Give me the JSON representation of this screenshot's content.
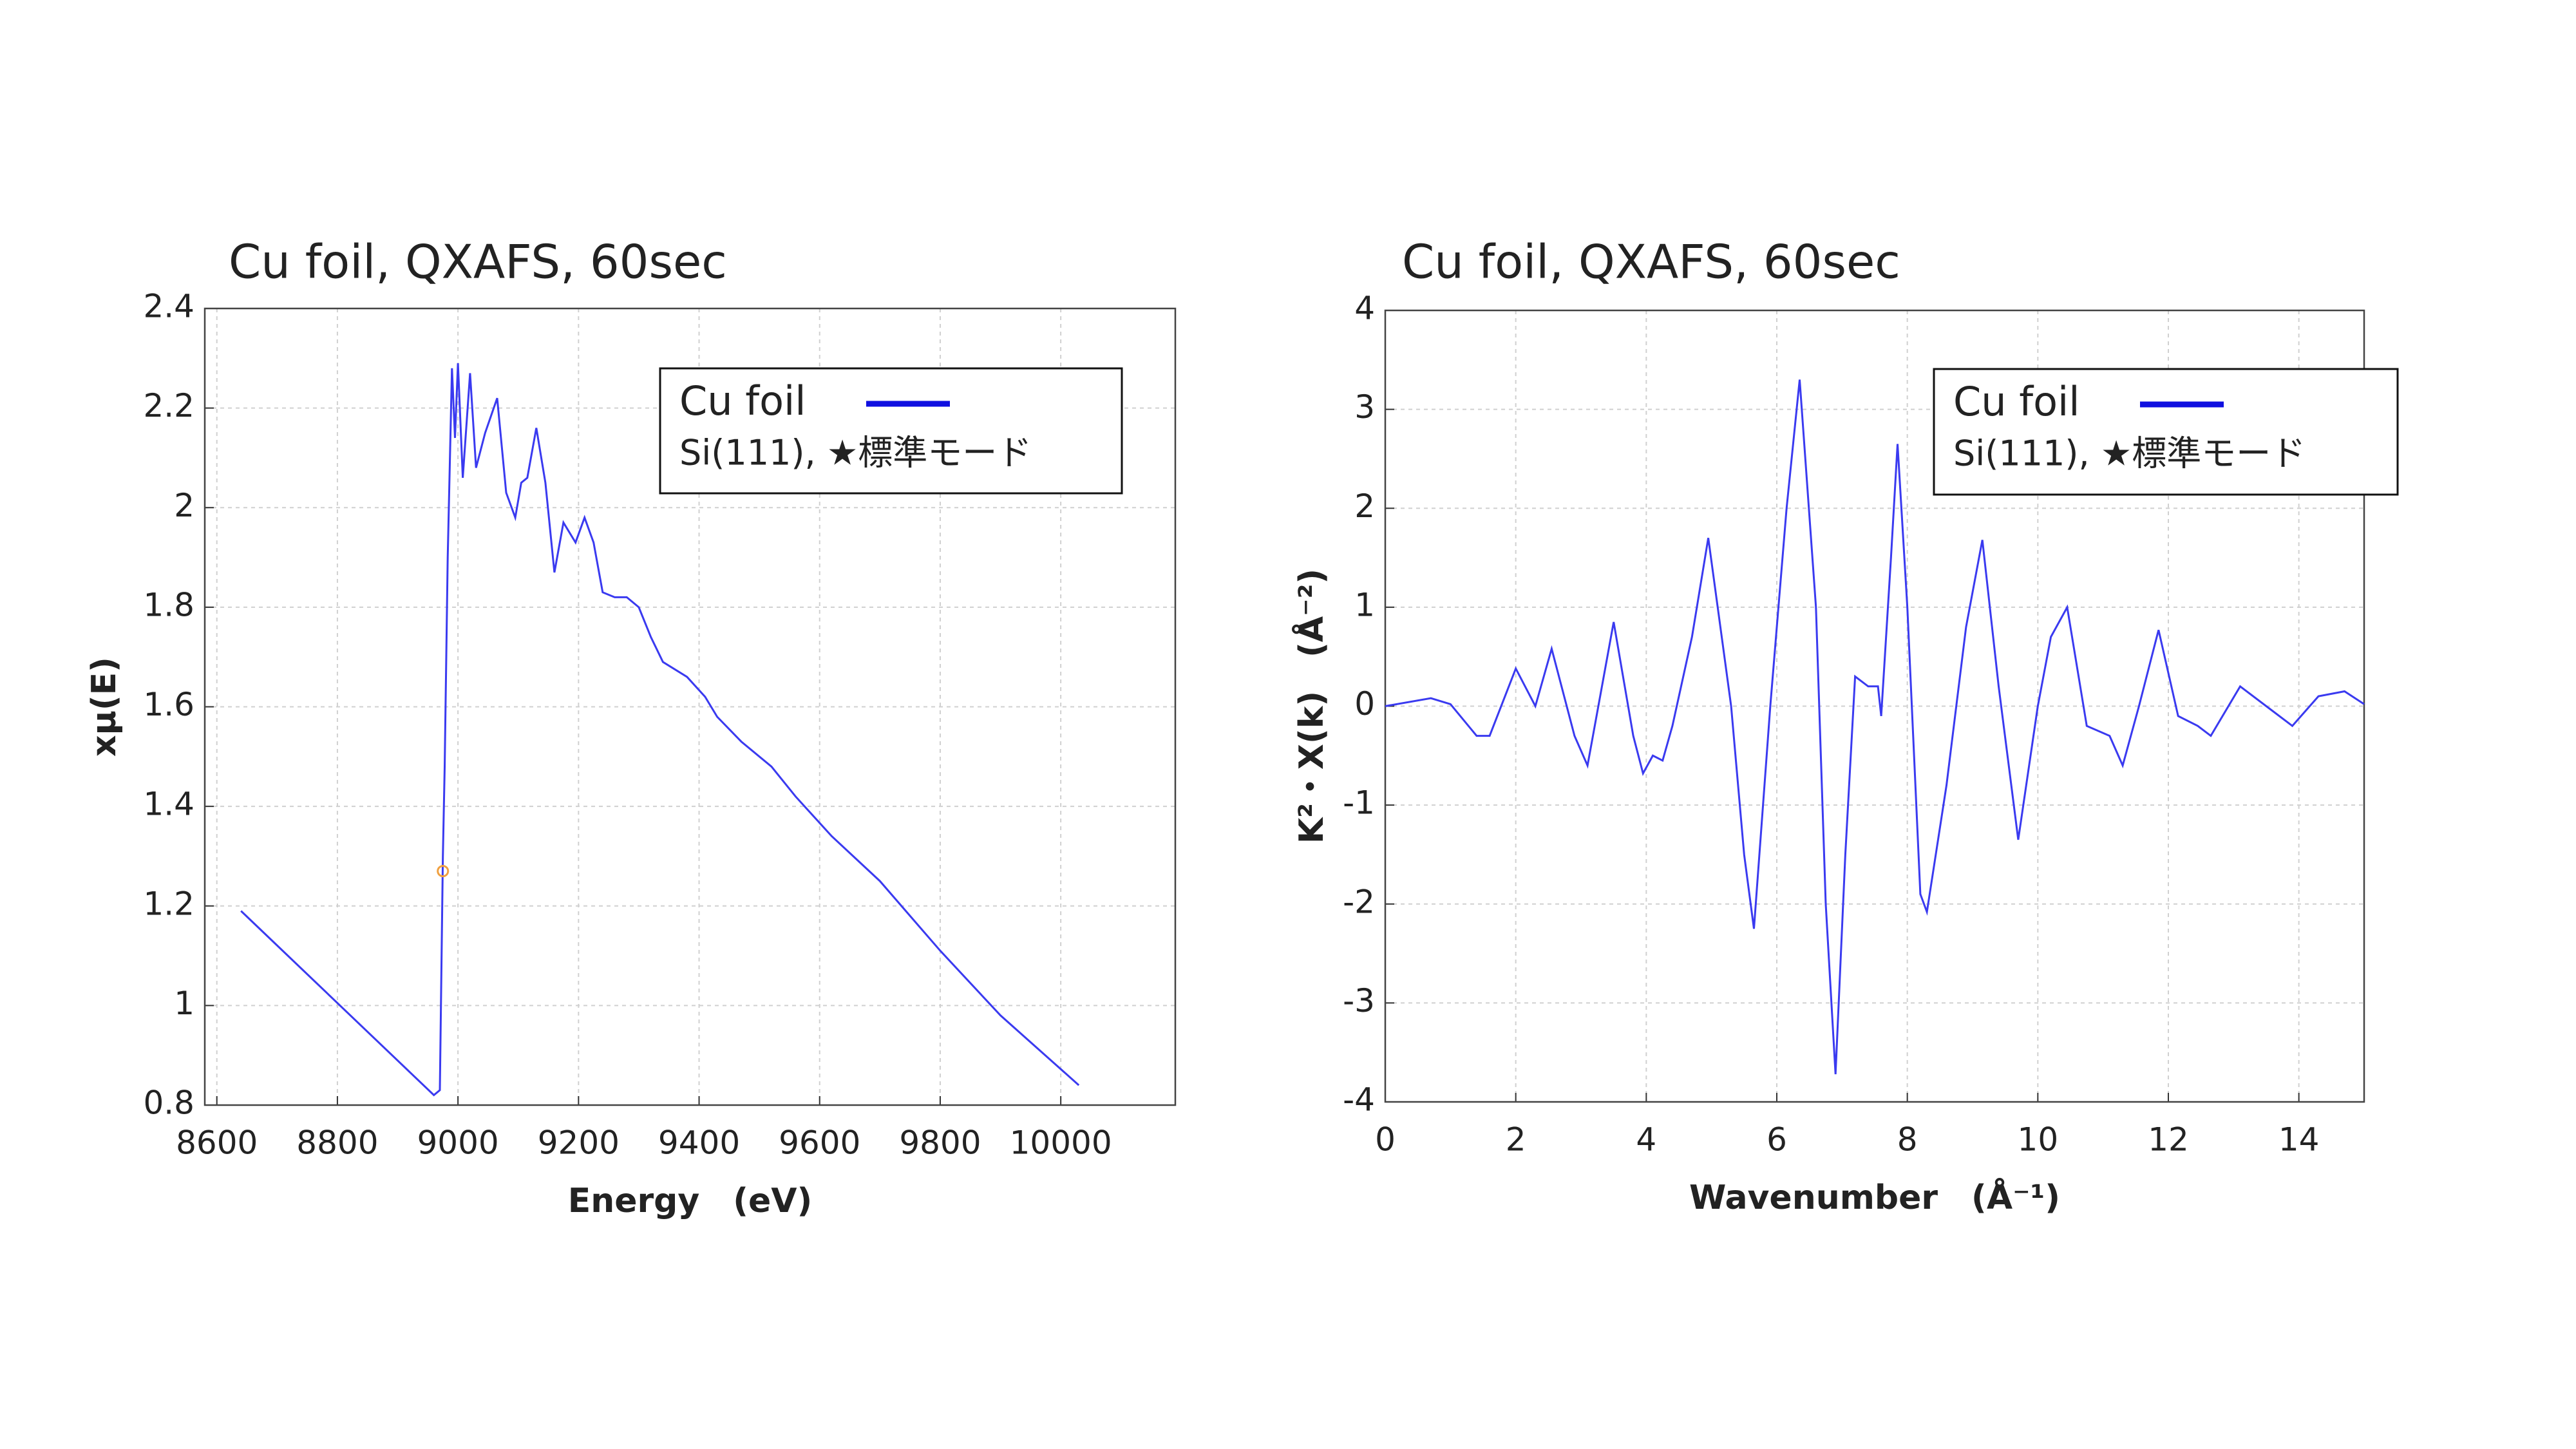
{
  "chart_data": [
    {
      "type": "line",
      "title": "Cu foil, QXAFS, 60sec",
      "x_label": "Energy　(eV)",
      "y_label": "xμ(E)",
      "x": [
        8640,
        8960,
        8970,
        8975,
        8978,
        8983,
        8990,
        8995,
        9000,
        9008,
        9020,
        9030,
        9045,
        9065,
        9080,
        9095,
        9105,
        9115,
        9130,
        9145,
        9160,
        9175,
        9195,
        9210,
        9225,
        9240,
        9260,
        9280,
        9300,
        9320,
        9340,
        9380,
        9410,
        9430,
        9470,
        9520,
        9560,
        9620,
        9700,
        9800,
        9900,
        10030
      ],
      "series": [
        {
          "name": "Cu foil",
          "color": "#3a3af0",
          "values": [
            1.19,
            0.82,
            0.83,
            1.3,
            1.48,
            1.9,
            2.28,
            2.14,
            2.29,
            2.06,
            2.27,
            2.08,
            2.15,
            2.22,
            2.03,
            1.98,
            2.05,
            2.06,
            2.16,
            2.05,
            1.87,
            1.97,
            1.93,
            1.98,
            1.93,
            1.83,
            1.82,
            1.82,
            1.8,
            1.74,
            1.69,
            1.66,
            1.62,
            1.58,
            1.53,
            1.48,
            1.42,
            1.34,
            1.25,
            1.11,
            0.98,
            0.84
          ]
        }
      ],
      "marker": {
        "x": 8975,
        "y": 1.27,
        "color": "#f0a040"
      },
      "legend_note": "Si(111), ★標準モード",
      "xlim": [
        8580,
        10190
      ],
      "xticks": [
        8600,
        8800,
        9000,
        9200,
        9400,
        9600,
        9800,
        10000
      ],
      "ylim": [
        0.8,
        2.4
      ],
      "yticks": [
        0.8,
        1,
        1.2,
        1.4,
        1.6,
        1.8,
        2,
        2.2,
        2.4
      ],
      "grid": true
    },
    {
      "type": "line",
      "title": "Cu foil, QXAFS, 60sec",
      "x_label": "Wavenumber　(Å⁻¹)",
      "y_label": "K²・X(k)　(Å⁻²)",
      "x": [
        0,
        0.7,
        1.0,
        1.4,
        1.6,
        2.0,
        2.3,
        2.55,
        2.9,
        3.1,
        3.5,
        3.8,
        3.95,
        4.1,
        4.25,
        4.4,
        4.7,
        4.95,
        5.3,
        5.5,
        5.65,
        5.9,
        6.15,
        6.35,
        6.6,
        6.75,
        6.9,
        7.05,
        7.2,
        7.4,
        7.55,
        7.6,
        7.75,
        7.85,
        8.0,
        8.2,
        8.3,
        8.6,
        8.9,
        9.15,
        9.4,
        9.7,
        10.0,
        10.2,
        10.45,
        10.75,
        11.1,
        11.3,
        11.55,
        11.85,
        12.15,
        12.45,
        12.65,
        13.1,
        13.5,
        13.9,
        14.3,
        14.7,
        15.0
      ],
      "series": [
        {
          "name": "Cu foil",
          "color": "#3a3af0",
          "values": [
            0.0,
            0.08,
            0.02,
            -0.3,
            -0.3,
            0.38,
            0.0,
            0.58,
            -0.3,
            -0.6,
            0.85,
            -0.3,
            -0.68,
            -0.5,
            -0.55,
            -0.2,
            0.7,
            1.7,
            0.0,
            -1.5,
            -2.25,
            0.0,
            2.0,
            3.3,
            1.0,
            -2.0,
            -3.72,
            -1.5,
            0.3,
            0.2,
            0.2,
            -0.1,
            1.5,
            2.65,
            1.0,
            -1.9,
            -2.08,
            -0.8,
            0.8,
            1.68,
            0.2,
            -1.35,
            0.0,
            0.7,
            1.0,
            -0.2,
            -0.3,
            -0.6,
            0.0,
            0.77,
            -0.1,
            -0.2,
            -0.3,
            0.2,
            0.0,
            -0.2,
            0.1,
            0.15,
            0.02
          ]
        }
      ],
      "legend_note": "Si(111), ★標準モード",
      "xlim": [
        0,
        15
      ],
      "xticks": [
        0,
        2,
        4,
        6,
        8,
        10,
        12,
        14
      ],
      "ylim": [
        -4,
        4
      ],
      "yticks": [
        -4,
        -3,
        -2,
        -1,
        0,
        1,
        2,
        3,
        4
      ],
      "grid": true
    }
  ]
}
